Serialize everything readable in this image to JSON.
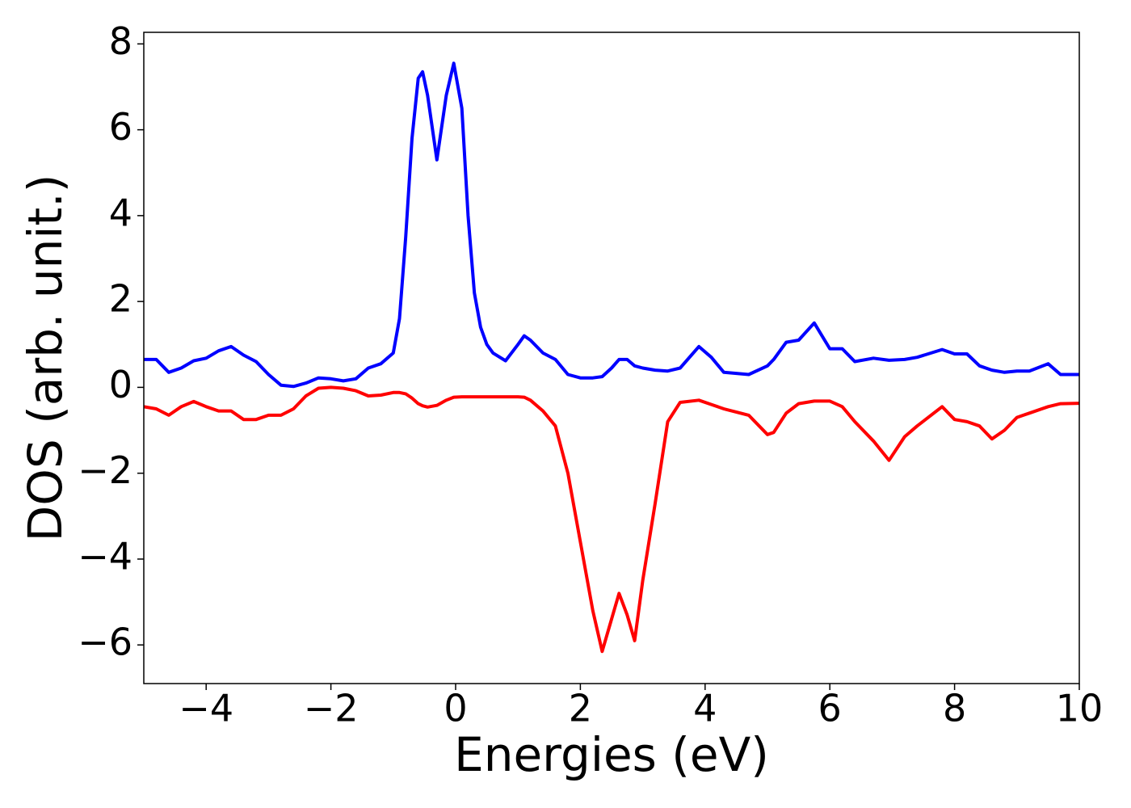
{
  "chart_data": {
    "type": "line",
    "xlabel": "Energies (eV)",
    "ylabel": "DOS (arb. unit.)",
    "x": [
      -5,
      -4.8,
      -4.6,
      -4.4,
      -4.2,
      -4,
      -3.8,
      -3.6,
      -3.4,
      -3.2,
      -3,
      -2.8,
      -2.6,
      -2.4,
      -2.2,
      -2,
      -1.8,
      -1.6,
      -1.4,
      -1.2,
      -1,
      -0.9,
      -0.8,
      -0.7,
      -0.6,
      -0.53,
      -0.45,
      -0.3,
      -0.15,
      -0.03,
      0.1,
      0.2,
      0.3,
      0.4,
      0.5,
      0.6,
      0.8,
      1,
      1.1,
      1.2,
      1.4,
      1.6,
      1.8,
      2,
      2.2,
      2.35,
      2.5,
      2.62,
      2.75,
      2.87,
      3,
      3.2,
      3.4,
      3.6,
      3.9,
      4.1,
      4.3,
      4.7,
      5,
      5.1,
      5.3,
      5.5,
      5.75,
      6,
      6.2,
      6.4,
      6.7,
      6.95,
      7.2,
      7.4,
      7.8,
      8,
      8.2,
      8.4,
      8.6,
      8.8,
      9,
      9.2,
      9.5,
      9.7,
      10
    ],
    "series": [
      {
        "color": "#0000ff",
        "values": [
          0.65,
          0.65,
          0.35,
          0.45,
          0.62,
          0.68,
          0.85,
          0.95,
          0.75,
          0.6,
          0.3,
          0.05,
          0.02,
          0.1,
          0.22,
          0.2,
          0.15,
          0.2,
          0.45,
          0.55,
          0.8,
          1.6,
          3.5,
          5.8,
          7.2,
          7.35,
          6.8,
          5.3,
          6.8,
          7.55,
          6.5,
          4.0,
          2.2,
          1.4,
          1.0,
          0.8,
          0.62,
          1.0,
          1.2,
          1.1,
          0.8,
          0.65,
          0.3,
          0.22,
          0.22,
          0.25,
          0.45,
          0.65,
          0.65,
          0.5,
          0.45,
          0.4,
          0.38,
          0.45,
          0.95,
          0.7,
          0.35,
          0.3,
          0.5,
          0.65,
          1.05,
          1.1,
          1.5,
          0.9,
          0.9,
          0.6,
          0.68,
          0.63,
          0.65,
          0.7,
          0.88,
          0.78,
          0.78,
          0.5,
          0.4,
          0.35,
          0.38,
          0.38,
          0.55,
          0.3,
          0.3
        ]
      },
      {
        "color": "#ff0000",
        "values": [
          -0.45,
          -0.5,
          -0.65,
          -0.45,
          -0.33,
          -0.45,
          -0.55,
          -0.55,
          -0.75,
          -0.75,
          -0.65,
          -0.65,
          -0.5,
          -0.2,
          -0.02,
          0,
          -0.02,
          -0.08,
          -0.2,
          -0.18,
          -0.12,
          -0.12,
          -0.15,
          -0.25,
          -0.38,
          -0.43,
          -0.46,
          -0.42,
          -0.3,
          -0.23,
          -0.22,
          -0.22,
          -0.22,
          -0.22,
          -0.22,
          -0.22,
          -0.22,
          -0.22,
          -0.23,
          -0.3,
          -0.55,
          -0.9,
          -2.0,
          -3.6,
          -5.2,
          -6.15,
          -5.4,
          -4.8,
          -5.3,
          -5.9,
          -4.5,
          -2.7,
          -0.8,
          -0.35,
          -0.3,
          -0.4,
          -0.5,
          -0.65,
          -1.1,
          -1.05,
          -0.6,
          -0.38,
          -0.32,
          -0.32,
          -0.45,
          -0.8,
          -1.25,
          -1.7,
          -1.15,
          -0.9,
          -0.45,
          -0.75,
          -0.8,
          -0.9,
          -1.2,
          -1.0,
          -0.7,
          -0.6,
          -0.45,
          -0.38,
          -0.37
        ]
      }
    ],
    "xlim": [
      -5,
      10
    ],
    "xticks": [
      {
        "value": -4,
        "label": "−4"
      },
      {
        "value": -2,
        "label": "−2"
      },
      0,
      2,
      4,
      6,
      8,
      10
    ],
    "ylim": [
      -6.9,
      8.27
    ],
    "yticks": [
      {
        "value": -6,
        "label": "−6"
      },
      {
        "value": -4,
        "label": "−4"
      },
      {
        "value": -2,
        "label": "−2"
      },
      0,
      2,
      4,
      6,
      8
    ]
  }
}
